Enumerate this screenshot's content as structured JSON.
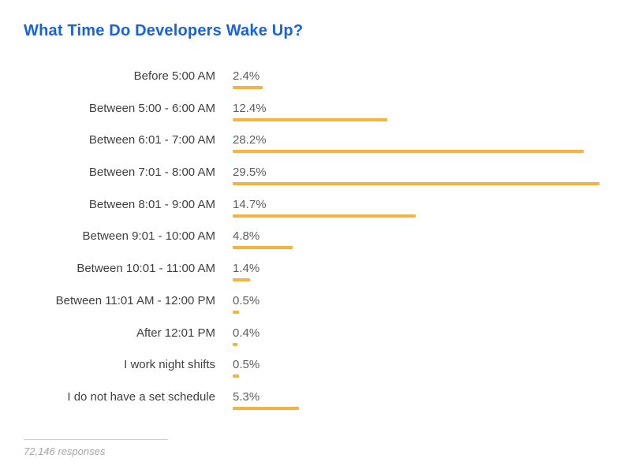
{
  "title": "What Time Do Developers Wake Up?",
  "chart_data": {
    "type": "bar",
    "orientation": "horizontal",
    "title": "What Time Do Developers Wake Up?",
    "categories": [
      "Before 5:00 AM",
      "Between 5:00 - 6:00 AM",
      "Between 6:01 - 7:00 AM",
      "Between 7:01 - 8:00 AM",
      "Between 8:01 - 9:00 AM",
      "Between 9:01 - 10:00 AM",
      "Between 10:01 - 11:00 AM",
      "Between 11:01 AM - 12:00 PM",
      "After 12:01 PM",
      "I work night shifts",
      "I do not have a set schedule"
    ],
    "values": [
      2.4,
      12.4,
      28.2,
      29.5,
      14.7,
      4.8,
      1.4,
      0.5,
      0.4,
      0.5,
      5.3
    ],
    "value_labels": [
      "2.4%",
      "12.4%",
      "28.2%",
      "29.5%",
      "14.7%",
      "4.8%",
      "1.4%",
      "0.5%",
      "0.4%",
      "0.5%",
      "5.3%"
    ],
    "xlim": [
      0,
      29.5
    ],
    "unit": "%",
    "grid": false,
    "legend": "none",
    "note": "72,146 responses"
  },
  "footer": {
    "note": "72,146 responses"
  },
  "colors": {
    "title": "#1762E3",
    "bar": "#F6B43C",
    "category_label": "#3F3F3F",
    "value_label": "#5E5E5E",
    "footer_text": "#A6A6A6",
    "divider": "#CFCFCF",
    "background": "#FFFFFF"
  }
}
